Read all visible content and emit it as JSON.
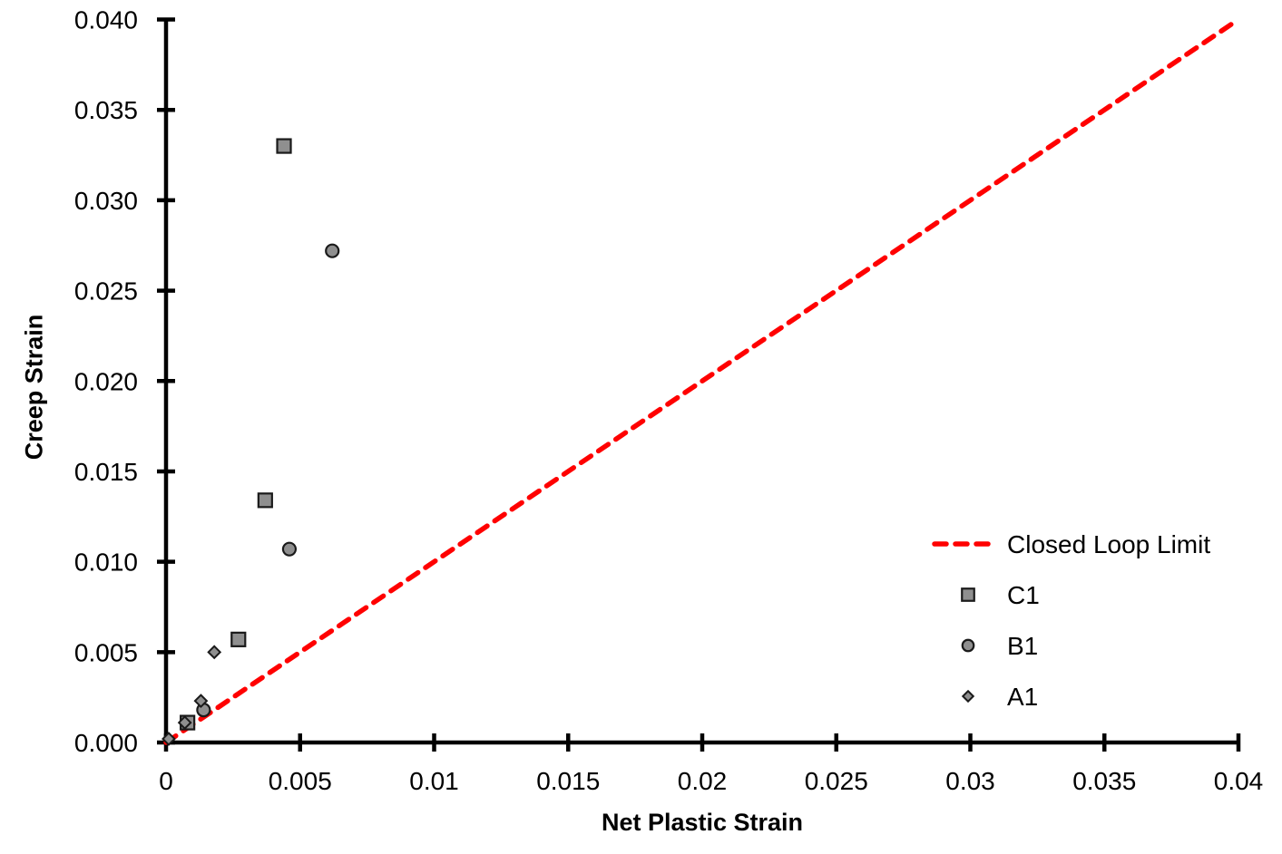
{
  "chart_data": {
    "type": "scatter",
    "title": "",
    "xlabel": "Net Plastic Strain",
    "ylabel": "Creep Strain",
    "xlim": [
      0,
      0.04
    ],
    "ylim": [
      0,
      0.04
    ],
    "grid": false,
    "background_color": "#ffffff",
    "axis_color": "#000000",
    "text_color": "#000000",
    "legend_position": "right-center",
    "x_ticks": [
      {
        "v": 0,
        "label": "0"
      },
      {
        "v": 0.005,
        "label": "0.005"
      },
      {
        "v": 0.01,
        "label": "0.01"
      },
      {
        "v": 0.015,
        "label": "0.015"
      },
      {
        "v": 0.02,
        "label": "0.02"
      },
      {
        "v": 0.025,
        "label": "0.025"
      },
      {
        "v": 0.03,
        "label": "0.03"
      },
      {
        "v": 0.035,
        "label": "0.035"
      },
      {
        "v": 0.04,
        "label": "0.04"
      }
    ],
    "y_ticks": [
      {
        "v": 0,
        "label": "0.000"
      },
      {
        "v": 0.005,
        "label": "0.005"
      },
      {
        "v": 0.01,
        "label": "0.010"
      },
      {
        "v": 0.015,
        "label": "0.015"
      },
      {
        "v": 0.02,
        "label": "0.020"
      },
      {
        "v": 0.025,
        "label": "0.025"
      },
      {
        "v": 0.03,
        "label": "0.030"
      },
      {
        "v": 0.035,
        "label": "0.035"
      },
      {
        "v": 0.04,
        "label": "0.040"
      }
    ],
    "line_series": [
      {
        "name": "Closed Loop Limit",
        "color": "#ff0000",
        "style": "dashed",
        "width": 5.5,
        "points": [
          [
            0,
            0
          ],
          [
            0.04,
            0.04
          ]
        ]
      }
    ],
    "series": [
      {
        "name": "C1",
        "marker": "square",
        "size": 15,
        "fill": "#8f8f8f",
        "stroke": "#1a1a1a",
        "points": [
          [
            0.0008,
            0.0011
          ],
          [
            0.0027,
            0.0057
          ],
          [
            0.0037,
            0.0134
          ],
          [
            0.0044,
            0.033
          ]
        ]
      },
      {
        "name": "B1",
        "marker": "circle",
        "size": 16,
        "fill": "#8f8f8f",
        "stroke": "#1a1a1a",
        "points": [
          [
            0.0014,
            0.0018
          ],
          [
            0.0046,
            0.0107
          ],
          [
            0.0062,
            0.0272
          ]
        ]
      },
      {
        "name": "A1",
        "marker": "diamond",
        "size": 13,
        "fill": "#8f8f8f",
        "stroke": "#1a1a1a",
        "points": [
          [
            0.0001,
            0.0002
          ],
          [
            0.0007,
            0.0011
          ],
          [
            0.0013,
            0.0023
          ],
          [
            0.0018,
            0.005
          ]
        ]
      }
    ]
  }
}
